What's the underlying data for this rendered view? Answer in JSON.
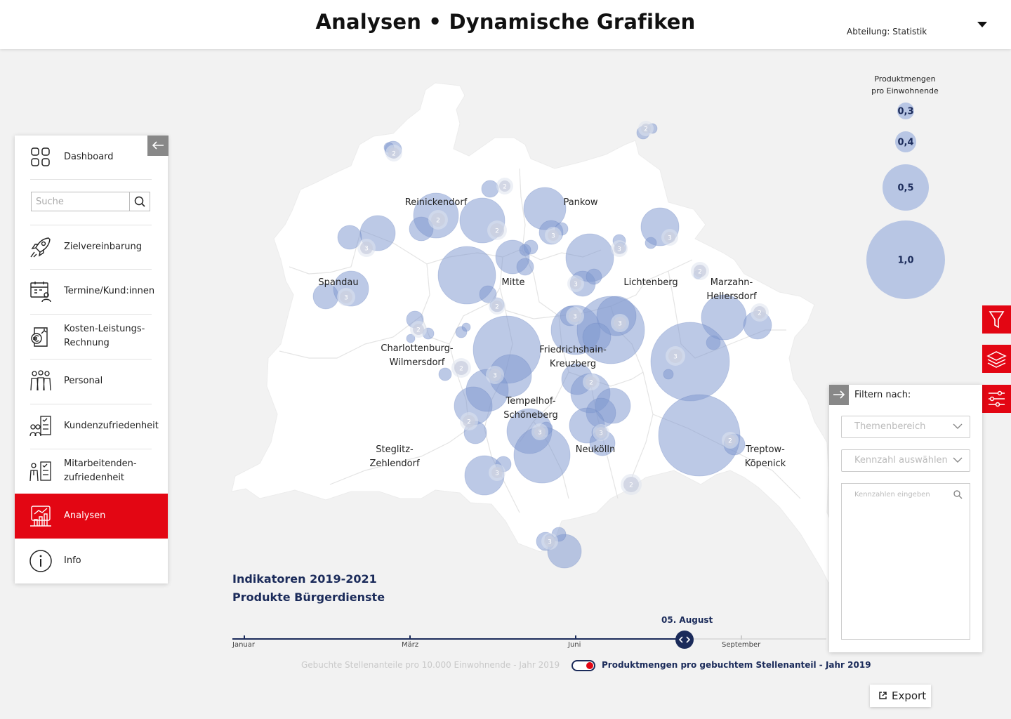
{
  "header": {
    "title": "Analysen • Dynamische Grafiken",
    "department": "Abteilung: Statistik"
  },
  "sidebar": {
    "collapse_icon": "arrow-left-icon",
    "search_placeholder": "Suche",
    "items": [
      {
        "label": "Dashboard",
        "icon": "dashboard-icon"
      },
      {
        "label": "Zielvereinbarung",
        "icon": "rocket-icon"
      },
      {
        "label": "Termine/Kund:innen",
        "icon": "calendar-person-icon"
      },
      {
        "label": "Kosten-Leistungs-Rechnung",
        "line1": "Kosten-Leistungs-",
        "line2": "Rechnung",
        "icon": "euro-chart-icon"
      },
      {
        "label": "Personal",
        "icon": "people-icon"
      },
      {
        "label": "Kundenzufriedenheit",
        "icon": "customer-rating-icon"
      },
      {
        "label": "Mitarbeitenden-zufriedenheit",
        "line1": "Mitarbeitenden-",
        "line2": "zufriedenheit",
        "icon": "employee-rating-icon"
      },
      {
        "label": "Analysen",
        "icon": "analytics-icon",
        "active": true
      },
      {
        "label": "Info",
        "icon": "info-icon"
      }
    ]
  },
  "map": {
    "districts": [
      {
        "name": "Reinickendorf",
        "lines": [
          "Reinickendorf"
        ]
      },
      {
        "name": "Pankow",
        "lines": [
          "Pankow"
        ]
      },
      {
        "name": "Spandau",
        "lines": [
          "Spandau"
        ]
      },
      {
        "name": "Mitte",
        "lines": [
          "Mitte"
        ]
      },
      {
        "name": "Lichtenberg",
        "lines": [
          "Lichtenberg"
        ]
      },
      {
        "name": "Marzahn-Hellersdorf",
        "lines": [
          "Marzahn-",
          "Hellersdorf"
        ]
      },
      {
        "name": "Charlottenburg-Wilmersdorf",
        "lines": [
          "Charlottenburg-",
          "Wilmersdorf"
        ]
      },
      {
        "name": "Friedrichshain-Kreuzberg",
        "lines": [
          "Friedrichshain-",
          "Kreuzberg"
        ]
      },
      {
        "name": "Tempelhof-Schöneberg",
        "lines": [
          "Tempelhof-",
          "Schöneberg"
        ]
      },
      {
        "name": "Steglitz-Zehlendorf",
        "lines": [
          "Steglitz-",
          "Zehlendorf"
        ]
      },
      {
        "name": "Neukölln",
        "lines": [
          "Neukölln"
        ]
      },
      {
        "name": "Treptow-Köpenick",
        "lines": [
          "Treptow-",
          "Köpenick"
        ]
      }
    ],
    "bubble_color": "#7f98cf",
    "cluster_counts": [
      "2",
      "3"
    ]
  },
  "legend": {
    "title_line1": "Produktmengen",
    "title_line2": "pro Einwohnende",
    "values": [
      "0,3",
      "0,4",
      "0,5",
      "1,0"
    ]
  },
  "tools": {
    "items": [
      "filter-icon",
      "layers-icon",
      "sliders-icon"
    ]
  },
  "filter_panel": {
    "title": "Filtern nach:",
    "select1_placeholder": "Themenbereich",
    "select2_placeholder": "Kennzahl auswählen",
    "search_placeholder": "Kennzahlen eingeben"
  },
  "indicator": {
    "title_line1": "Indikatoren 2019-2021",
    "title_line2": "Produkte Bürgerdienste"
  },
  "timeline": {
    "months": [
      "Januar",
      "März",
      "Juni",
      "September"
    ],
    "current": "05. August",
    "progress": 0.76
  },
  "toggle": {
    "left_label": "Gebuchte Stellenanteile pro 10.000 Einwohnende - Jahr 2019",
    "right_label": "Produktmengen pro gebuchtem Stellenanteil - Jahr 2019",
    "state": "right"
  },
  "export": {
    "label": "Export"
  },
  "colors": {
    "accent": "#e30613",
    "navy": "#1b2b5a",
    "bubble": "#7f98cf"
  }
}
